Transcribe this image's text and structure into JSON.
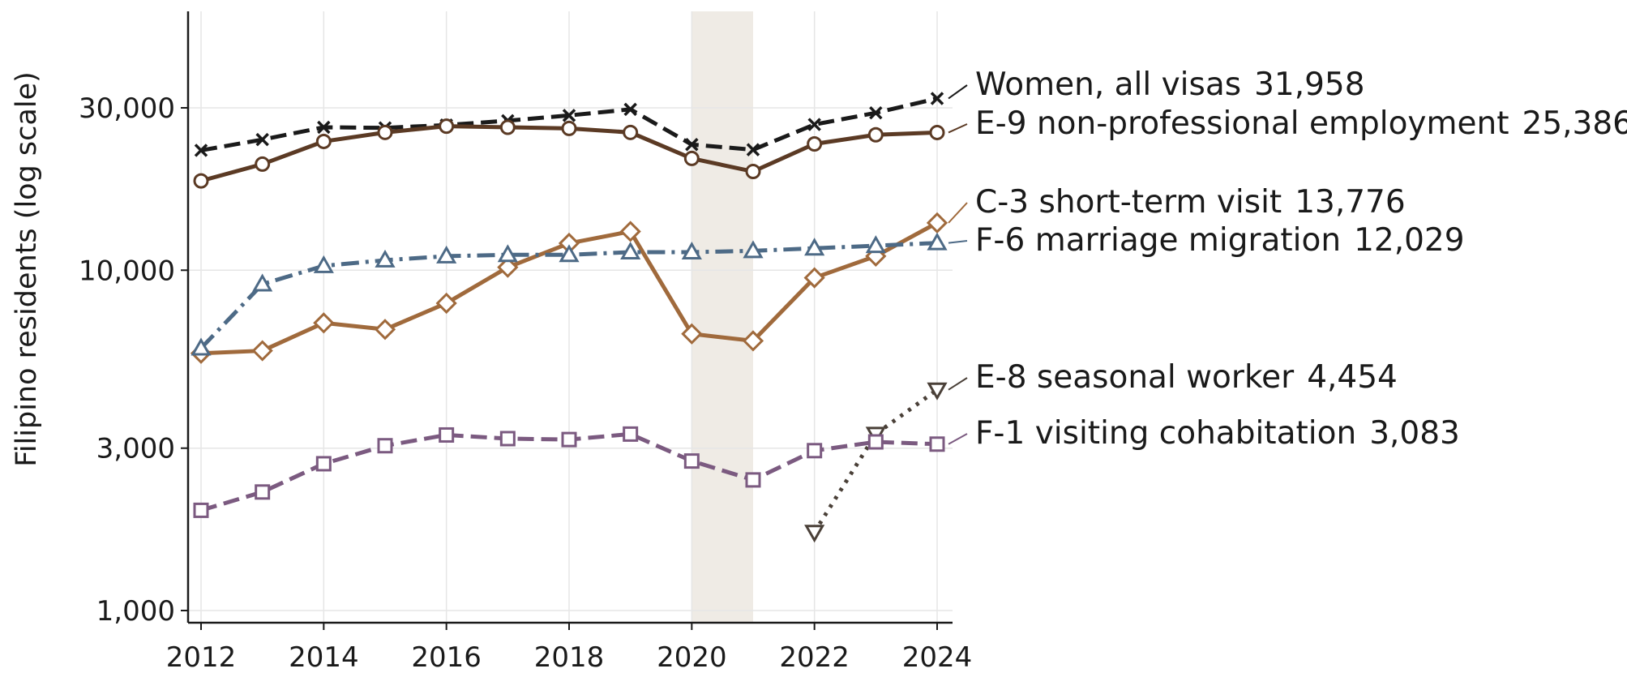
{
  "chart_data": {
    "type": "line",
    "title": "",
    "xlabel": "",
    "ylabel": "Filipino residents (log scale)",
    "yscale": "log",
    "ylim": [
      950,
      52000
    ],
    "xlim": [
      2011.8,
      2024.25
    ],
    "grid": true,
    "legend": "direct labels at right end of lines",
    "x_ticks": [
      "2012",
      "2014",
      "2016",
      "2018",
      "2020",
      "2022",
      "2024"
    ],
    "y_ticks": [
      {
        "value": 1000,
        "label": "1,000"
      },
      {
        "value": 3000,
        "label": "3,000"
      },
      {
        "value": 10000,
        "label": "10,000"
      },
      {
        "value": 30000,
        "label": "30,000"
      }
    ],
    "shaded_span": {
      "x_start": 2020,
      "x_end": 2021,
      "color": "#efebe5"
    },
    "series": [
      {
        "name": "Women, all visas",
        "end_label": "31,958",
        "color": "#1a1a1a",
        "marker": "x",
        "dash": "dashed",
        "x": [
          2012,
          2013,
          2014,
          2015,
          2016,
          2017,
          2018,
          2019,
          2020,
          2021,
          2022,
          2023,
          2024
        ],
        "values": [
          22500,
          24200,
          26300,
          26200,
          26700,
          27500,
          28500,
          29700,
          23400,
          22600,
          26800,
          29000,
          31958
        ]
      },
      {
        "name": "E-9 non-professional employment",
        "end_label": "25,386",
        "color": "#5b3a24",
        "marker": "circle",
        "dash": "solid",
        "x": [
          2012,
          2013,
          2014,
          2015,
          2016,
          2017,
          2018,
          2019,
          2020,
          2021,
          2022,
          2023,
          2024
        ],
        "values": [
          18300,
          20500,
          23900,
          25400,
          26500,
          26300,
          26100,
          25400,
          21300,
          19500,
          23500,
          25000,
          25386
        ]
      },
      {
        "name": "C-3 short-term visit",
        "end_label": "13,776",
        "color": "#a06a3c",
        "marker": "diamond",
        "dash": "solid",
        "x": [
          2012,
          2013,
          2014,
          2015,
          2016,
          2017,
          2018,
          2019,
          2020,
          2021,
          2022,
          2023,
          2024
        ],
        "values": [
          5700,
          5800,
          7000,
          6700,
          8000,
          10200,
          12000,
          13000,
          6500,
          6200,
          9500,
          11000,
          13776
        ]
      },
      {
        "name": "F-6 marriage migration",
        "end_label": "12,029",
        "color": "#4d6a86",
        "marker": "triangle-up",
        "dash": "dashdot",
        "x": [
          2012,
          2013,
          2014,
          2015,
          2016,
          2017,
          2018,
          2019,
          2020,
          2021,
          2022,
          2023,
          2024
        ],
        "values": [
          5900,
          9100,
          10300,
          10700,
          11000,
          11100,
          11100,
          11300,
          11300,
          11400,
          11600,
          11800,
          12029
        ]
      },
      {
        "name": "E-8 seasonal worker",
        "end_label": "4,454",
        "color": "#4a4038",
        "marker": "triangle-down",
        "dash": "dotted",
        "x": [
          2022,
          2023,
          2024
        ],
        "values": [
          1700,
          3300,
          4454
        ]
      },
      {
        "name": "F-1 visiting cohabitation",
        "end_label": "3,083",
        "color": "#7b5a80",
        "marker": "square",
        "dash": "dashed",
        "x": [
          2012,
          2013,
          2014,
          2015,
          2016,
          2017,
          2018,
          2019,
          2020,
          2021,
          2022,
          2023,
          2024
        ],
        "values": [
          1970,
          2230,
          2700,
          3050,
          3280,
          3200,
          3180,
          3300,
          2750,
          2420,
          2950,
          3130,
          3083
        ]
      }
    ]
  }
}
